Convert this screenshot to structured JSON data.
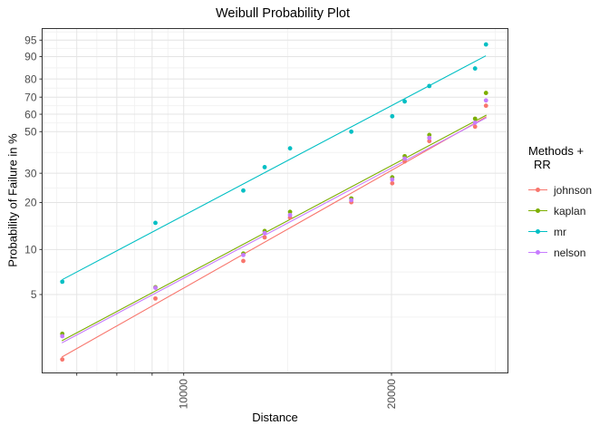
{
  "title": "Weibull Probability Plot",
  "legend": {
    "title_line1": "Methods +",
    "title_line2": "RR"
  },
  "chart_data": {
    "type": "scatter",
    "title": "Weibull Probability Plot",
    "xlabel": "Distance",
    "ylabel": "Probability of Failure in %",
    "x_scale": "log10",
    "y_scale": "weibull-probability",
    "x_breaks_labeled": [
      "10000",
      "20000"
    ],
    "x_breaks_unlabeled": [
      7000,
      8000,
      9000
    ],
    "y_breaks": [
      5,
      10,
      20,
      30,
      50,
      60,
      70,
      80,
      90,
      95
    ],
    "x_range_px_note": "panel spans approx distance 6250 to 29400",
    "x": [
      6670,
      9100,
      12200,
      13100,
      14260,
      17490,
      20050,
      20900,
      22690,
      26430,
      27410
    ],
    "series": [
      {
        "name": "johnson",
        "color": "#F8766D",
        "p": [
          1.8,
          4.7,
          8.4,
          12.0,
          16.1,
          20.1,
          26.2,
          35.0,
          44.9,
          52.8,
          65.0
        ],
        "line": {
          "x1": 6660,
          "p1": 1.87,
          "x2": 27450,
          "p2": 58.6
        }
      },
      {
        "name": "kaplan",
        "color": "#7CAE00",
        "p": [
          2.7,
          5.6,
          9.4,
          13.2,
          17.5,
          21.2,
          28.4,
          37.4,
          48.2,
          57.4,
          72.4
        ],
        "line": {
          "x1": 6660,
          "p1": 2.42,
          "x2": 27450,
          "p2": 59.5
        }
      },
      {
        "name": "mr",
        "color": "#00BFC4",
        "p": [
          6.1,
          14.9,
          23.7,
          32.5,
          41.2,
          50.0,
          58.8,
          67.5,
          76.3,
          85.1,
          93.9
        ],
        "line": {
          "x1": 6670,
          "p1": 6.3,
          "x2": 27400,
          "p2": 90.3
        }
      },
      {
        "name": "nelson",
        "color": "#C77CFF",
        "p": [
          2.6,
          5.55,
          9.2,
          12.8,
          16.7,
          20.7,
          27.6,
          36.3,
          46.6,
          55.1,
          68.1
        ],
        "line": {
          "x1": 6660,
          "p1": 2.34,
          "x2": 27450,
          "p2": 58.0
        }
      }
    ]
  }
}
